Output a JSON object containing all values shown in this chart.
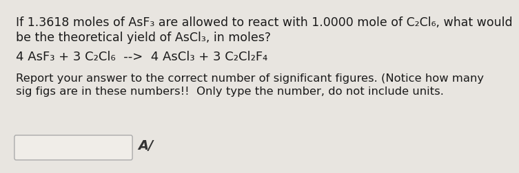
{
  "bg_color": "#e8e5e0",
  "text_color": "#1a1a1a",
  "line1": "If 1.3618 moles of AsF₃ are allowed to react with 1.0000 mole of C₂Cl₆, what would",
  "line2": "be the theoretical yield of AsCl₃, in moles?",
  "rxn_line": "4 AsF₃ + 3 C₂Cl₆  -->  4 AsCl₃ + 3 C₂Cl₂F₄",
  "report_line1": "Report your answer to the correct number of significant figures. (Notice how many",
  "report_line2": "sig figs are in these numbers!!  Only type the number, do not include units.",
  "font_size_main": 12.5,
  "font_size_rxn": 13.0,
  "font_size_report": 11.8,
  "box_color": "#f0ede8",
  "box_edge_color": "#aaaaaa",
  "pencil_text": "A/"
}
